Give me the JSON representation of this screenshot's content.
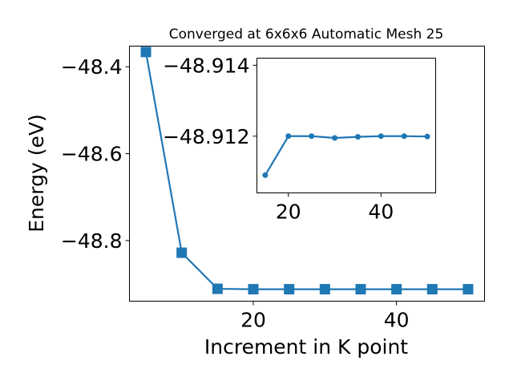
{
  "chart_data": [
    {
      "type": "line",
      "title": "Converged at 6x6x6 Automatic Mesh 25",
      "xlabel": "Increment in K point",
      "ylabel": "Energy (eV)",
      "xlim": [
        2.7,
        52.3
      ],
      "ylim": [
        -48.9395,
        -48.3525
      ],
      "x_ticks": [
        20,
        40
      ],
      "x_tick_labels": [
        "20",
        "40"
      ],
      "y_ticks": [
        -48.4,
        -48.6,
        -48.8
      ],
      "y_tick_labels": [
        "−48.4",
        "−48.6",
        "−48.8"
      ],
      "marker": "square",
      "grid": false,
      "color": "#1f77b4",
      "series": [
        {
          "x": [
            5,
            10,
            15,
            20,
            25,
            30,
            35,
            40,
            45,
            50
          ],
          "y": [
            -48.366,
            -48.828,
            -48.911,
            -48.912,
            -48.912,
            -48.912,
            -48.912,
            -48.912,
            -48.912,
            -48.912
          ]
        }
      ]
    },
    {
      "type": "line",
      "title": "",
      "xlim": [
        13.2,
        51.8
      ],
      "ylim": [
        -48.9104,
        -48.9142
      ],
      "x_ticks": [
        20,
        40
      ],
      "x_tick_labels": [
        "20",
        "40"
      ],
      "y_ticks": [
        -48.914,
        -48.912
      ],
      "y_tick_labels": [
        "−48.914",
        "−48.912"
      ],
      "marker": "circle",
      "grid": false,
      "color": "#1f77b4",
      "series": [
        {
          "x": [
            15,
            20,
            25,
            30,
            35,
            40,
            45,
            50
          ],
          "y": [
            -48.9109,
            -48.912,
            -48.912,
            -48.91195,
            -48.91198,
            -48.912,
            -48.912,
            -48.91199
          ]
        }
      ]
    }
  ]
}
